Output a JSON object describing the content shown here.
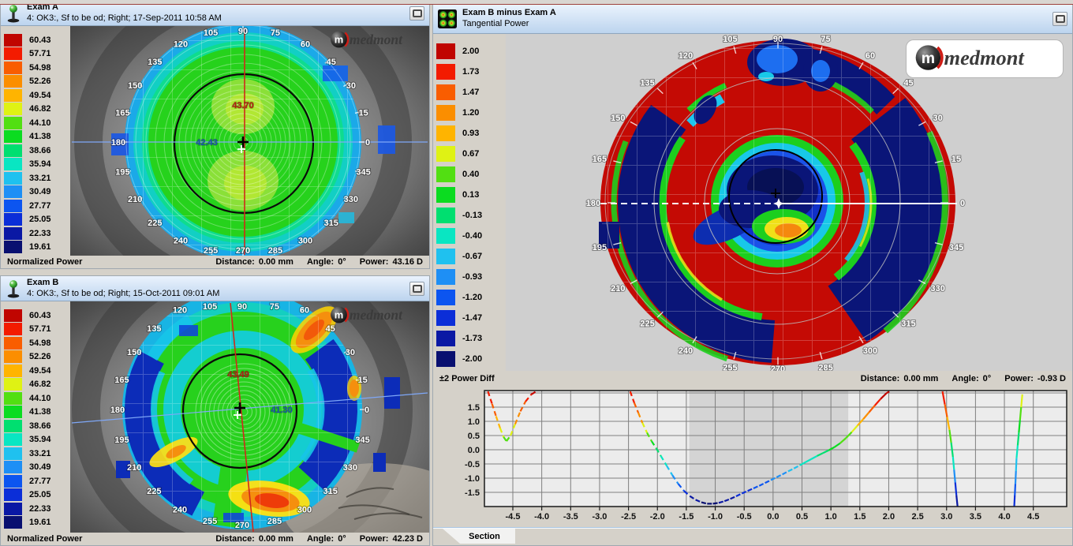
{
  "logo_text": "medmont",
  "palette": [
    "#c00500",
    "#f31b00",
    "#f95d00",
    "#fb8e00",
    "#ffb400",
    "#dff214",
    "#52df12",
    "#0bdc20",
    "#00df70",
    "#09e6c2",
    "#1fc1ef",
    "#1e8ff5",
    "#0c55f0",
    "#0b2ed8",
    "#0a18a4",
    "#091070"
  ],
  "angle_labels": [
    "0",
    "15",
    "30",
    "45",
    "60",
    "75",
    "90",
    "105",
    "120",
    "135",
    "150",
    "165",
    "180",
    "195",
    "210",
    "225",
    "240",
    "255",
    "270",
    "285",
    "300",
    "315",
    "330",
    "345"
  ],
  "panels": {
    "exam_a": {
      "title": "Exam A",
      "subtitle": "4: OK3:, Sf to be od; Right; 17-Sep-2011 10:58 AM",
      "scale_values": [
        "60.43",
        "57.71",
        "54.98",
        "52.26",
        "49.54",
        "46.82",
        "44.10",
        "41.38",
        "38.66",
        "35.94",
        "33.21",
        "30.49",
        "27.77",
        "25.05",
        "22.33",
        "19.61"
      ],
      "scale_label": "Normalized Power",
      "status": {
        "distance_label": "Distance:",
        "distance_value": "0.00 mm",
        "angle_label": "Angle:",
        "angle_value": "0°",
        "power_label": "Power:",
        "power_value": "43.16 D"
      },
      "map": {
        "steep_value": "43.70",
        "flat_value": "42.43"
      }
    },
    "exam_b": {
      "title": "Exam B",
      "subtitle": "4: OK3:, Sf to be od; Right; 15-Oct-2011 09:01 AM",
      "scale_values": [
        "60.43",
        "57.71",
        "54.98",
        "52.26",
        "49.54",
        "46.82",
        "44.10",
        "41.38",
        "38.66",
        "35.94",
        "33.21",
        "30.49",
        "27.77",
        "25.05",
        "22.33",
        "19.61"
      ],
      "scale_label": "Normalized Power",
      "status": {
        "distance_label": "Distance:",
        "distance_value": "0.00 mm",
        "angle_label": "Angle:",
        "angle_value": "0°",
        "power_label": "Power:",
        "power_value": "42.23 D"
      },
      "map": {
        "steep_value": "43.49",
        "flat_value": "41.30"
      }
    },
    "diff": {
      "title": "Exam B minus Exam A",
      "subtitle": "Tangential Power",
      "scale_values": [
        "2.00",
        "1.73",
        "1.47",
        "1.20",
        "0.93",
        "0.67",
        "0.40",
        "0.13",
        "-0.13",
        "-0.40",
        "-0.67",
        "-0.93",
        "-1.20",
        "-1.47",
        "-1.73",
        "-2.00"
      ],
      "scale_label": "±2 Power Diff",
      "status": {
        "distance_label": "Distance:",
        "distance_value": "0.00 mm",
        "angle_label": "Angle:",
        "angle_value": "0°",
        "power_label": "Power:",
        "power_value": "-0.93 D"
      }
    }
  },
  "section": {
    "tab_label": "Section"
  },
  "chart_data": {
    "type": "line",
    "title": "",
    "xlabel": "",
    "ylabel": "",
    "xlim": [
      -5.0,
      5.1
    ],
    "ylim": [
      -2.0,
      2.08
    ],
    "xticks": [
      -4.5,
      -4.0,
      -3.5,
      -3.0,
      -2.5,
      -2.0,
      -1.5,
      -1.0,
      -0.5,
      0.0,
      0.5,
      1.0,
      1.5,
      2.0,
      2.5,
      3.0,
      3.5,
      4.0,
      4.5
    ],
    "yticks": [
      1.5,
      1.0,
      0.5,
      0.0,
      -0.5,
      -1.0,
      -1.5
    ],
    "grid": true,
    "shaded_region": [
      -1.45,
      1.3
    ],
    "series": [
      {
        "name": "segment-1",
        "dashed": true,
        "points": [
          [
            -4.93,
            2.05
          ],
          [
            -4.86,
            1.62
          ],
          [
            -4.79,
            1.18
          ],
          [
            -4.72,
            0.76
          ],
          [
            -4.66,
            0.45
          ],
          [
            -4.61,
            0.3
          ],
          [
            -4.54,
            0.5
          ],
          [
            -4.46,
            0.9
          ],
          [
            -4.37,
            1.35
          ],
          [
            -4.28,
            1.7
          ],
          [
            -4.18,
            1.95
          ],
          [
            -4.1,
            2.05
          ]
        ]
      },
      {
        "name": "segment-2",
        "dashed": true,
        "points": [
          [
            -2.47,
            2.05
          ],
          [
            -2.4,
            1.65
          ],
          [
            -2.33,
            1.3
          ],
          [
            -2.26,
            0.95
          ],
          [
            -2.18,
            0.6
          ],
          [
            -2.1,
            0.3
          ],
          [
            -2.02,
            0.05
          ],
          [
            -1.94,
            -0.22
          ],
          [
            -1.84,
            -0.56
          ],
          [
            -1.74,
            -0.9
          ],
          [
            -1.64,
            -1.2
          ],
          [
            -1.54,
            -1.45
          ],
          [
            -1.44,
            -1.63
          ],
          [
            -1.34,
            -1.76
          ],
          [
            -1.24,
            -1.85
          ],
          [
            -1.14,
            -1.9
          ],
          [
            -1.04,
            -1.9
          ],
          [
            -0.94,
            -1.87
          ],
          [
            -0.84,
            -1.81
          ],
          [
            -0.74,
            -1.73
          ],
          [
            -0.64,
            -1.64
          ],
          [
            -0.54,
            -1.54
          ],
          [
            -0.44,
            -1.45
          ],
          [
            -0.34,
            -1.36
          ],
          [
            -0.24,
            -1.27
          ],
          [
            -0.14,
            -1.17
          ],
          [
            -0.04,
            -1.07
          ],
          [
            0.06,
            -0.97
          ],
          [
            0.16,
            -0.87
          ],
          [
            0.26,
            -0.76
          ],
          [
            0.36,
            -0.66
          ],
          [
            0.46,
            -0.55
          ]
        ]
      },
      {
        "name": "segment-3",
        "dashed": false,
        "points": [
          [
            0.46,
            -0.55
          ],
          [
            0.56,
            -0.44
          ],
          [
            0.66,
            -0.33
          ],
          [
            0.76,
            -0.22
          ],
          [
            0.86,
            -0.12
          ],
          [
            0.96,
            -0.02
          ],
          [
            1.06,
            0.09
          ],
          [
            1.16,
            0.23
          ],
          [
            1.26,
            0.41
          ],
          [
            1.36,
            0.62
          ],
          [
            1.46,
            0.85
          ],
          [
            1.56,
            1.08
          ],
          [
            1.66,
            1.32
          ],
          [
            1.76,
            1.56
          ],
          [
            1.86,
            1.79
          ],
          [
            1.96,
            1.99
          ],
          [
            2.01,
            2.05
          ]
        ]
      },
      {
        "name": "segment-4",
        "dashed": false,
        "points": [
          [
            2.93,
            2.05
          ],
          [
            2.97,
            1.6
          ],
          [
            3.01,
            1.15
          ],
          [
            3.05,
            0.7
          ],
          [
            3.08,
            0.25
          ],
          [
            3.11,
            -0.25
          ],
          [
            3.13,
            -0.7
          ],
          [
            3.15,
            -1.15
          ],
          [
            3.17,
            -1.6
          ],
          [
            3.19,
            -2.0
          ]
        ]
      },
      {
        "name": "segment-5",
        "dashed": false,
        "points": [
          [
            4.31,
            1.95,
            0.67
          ],
          [
            4.29,
            1.5,
            0.45
          ],
          [
            4.27,
            1.05,
            0.25
          ],
          [
            4.25,
            0.6,
            0.1
          ],
          [
            4.23,
            0.15,
            -0.15
          ],
          [
            4.21,
            -0.3,
            -0.45
          ],
          [
            4.2,
            -0.75,
            -0.7
          ],
          [
            4.19,
            -1.2,
            -1.0
          ],
          [
            4.18,
            -1.6,
            -1.35
          ],
          [
            4.17,
            -2.0,
            -1.7
          ]
        ]
      }
    ]
  }
}
